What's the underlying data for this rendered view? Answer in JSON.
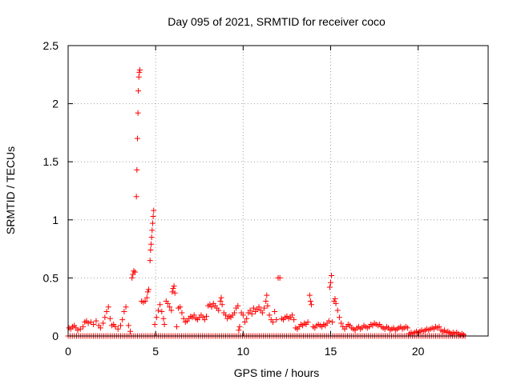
{
  "chart_data": {
    "type": "scatter",
    "title": "Day 095 of 2021, SRMTID for receiver coco",
    "xlabel": "GPS time / hours",
    "ylabel": "SRMTID / TECUs",
    "xlim": [
      0,
      24
    ],
    "ylim": [
      0,
      2.5
    ],
    "xticks": [
      0,
      5,
      10,
      15,
      20
    ],
    "yticks": [
      0,
      0.5,
      1,
      1.5,
      2,
      2.5
    ],
    "xtick_labels": [
      "0",
      "5",
      "10",
      "15",
      "20"
    ],
    "ytick_labels": [
      "0",
      "0.5",
      "1",
      "1.5",
      "2",
      "2.5"
    ],
    "grid": true,
    "marker": "+",
    "color": "#ff0000",
    "baseline": {
      "x_start": 0.0,
      "x_end": 22.7,
      "step": 0.12,
      "y": 0.0
    },
    "series": [
      {
        "name": "SRMTID",
        "points": [
          [
            0.05,
            0.07
          ],
          [
            0.15,
            0.06
          ],
          [
            0.25,
            0.08
          ],
          [
            0.35,
            0.09
          ],
          [
            0.45,
            0.07
          ],
          [
            0.55,
            0.05
          ],
          [
            0.7,
            0.06
          ],
          [
            0.85,
            0.08
          ],
          [
            0.95,
            0.12
          ],
          [
            1.05,
            0.13
          ],
          [
            1.15,
            0.11
          ],
          [
            1.3,
            0.12
          ],
          [
            1.45,
            0.1
          ],
          [
            1.6,
            0.13
          ],
          [
            1.75,
            0.09
          ],
          [
            1.85,
            0.07
          ],
          [
            2.0,
            0.11
          ],
          [
            2.1,
            0.16
          ],
          [
            2.2,
            0.21
          ],
          [
            2.3,
            0.25
          ],
          [
            2.4,
            0.15
          ],
          [
            2.5,
            0.09
          ],
          [
            2.6,
            0.1
          ],
          [
            2.7,
            0.08
          ],
          [
            2.85,
            0.06
          ],
          [
            3.0,
            0.09
          ],
          [
            3.1,
            0.14
          ],
          [
            3.2,
            0.21
          ],
          [
            3.3,
            0.25
          ],
          [
            3.45,
            0.09
          ],
          [
            3.55,
            0.04
          ],
          [
            3.65,
            0.5
          ],
          [
            3.7,
            0.53
          ],
          [
            3.75,
            0.56
          ],
          [
            3.82,
            0.55
          ],
          [
            3.9,
            1.2
          ],
          [
            3.93,
            1.43
          ],
          [
            3.96,
            1.7
          ],
          [
            3.99,
            1.92
          ],
          [
            4.01,
            2.11
          ],
          [
            4.04,
            2.23
          ],
          [
            4.07,
            2.27
          ],
          [
            4.1,
            2.29
          ],
          [
            4.2,
            0.3
          ],
          [
            4.3,
            0.29
          ],
          [
            4.4,
            0.3
          ],
          [
            4.5,
            0.33
          ],
          [
            4.55,
            0.38
          ],
          [
            4.6,
            0.4
          ],
          [
            4.68,
            0.65
          ],
          [
            4.71,
            0.74
          ],
          [
            4.74,
            0.79
          ],
          [
            4.77,
            0.85
          ],
          [
            4.8,
            0.91
          ],
          [
            4.83,
            0.97
          ],
          [
            4.86,
            1.03
          ],
          [
            4.89,
            1.08
          ],
          [
            4.95,
            0.1
          ],
          [
            5.05,
            0.16
          ],
          [
            5.15,
            0.22
          ],
          [
            5.25,
            0.27
          ],
          [
            5.35,
            0.21
          ],
          [
            5.45,
            0.15
          ],
          [
            5.5,
            0.1
          ],
          [
            5.6,
            0.3
          ],
          [
            5.7,
            0.28
          ],
          [
            5.8,
            0.25
          ],
          [
            5.9,
            0.22
          ],
          [
            5.95,
            0.38
          ],
          [
            6.0,
            0.41
          ],
          [
            6.05,
            0.43
          ],
          [
            6.1,
            0.37
          ],
          [
            6.2,
            0.08
          ],
          [
            6.3,
            0.24
          ],
          [
            6.4,
            0.25
          ],
          [
            6.5,
            0.2
          ],
          [
            6.6,
            0.15
          ],
          [
            6.7,
            0.12
          ],
          [
            6.8,
            0.13
          ],
          [
            6.9,
            0.15
          ],
          [
            7.0,
            0.17
          ],
          [
            7.1,
            0.16
          ],
          [
            7.2,
            0.18
          ],
          [
            7.3,
            0.15
          ],
          [
            7.4,
            0.14
          ],
          [
            7.5,
            0.16
          ],
          [
            7.6,
            0.18
          ],
          [
            7.7,
            0.16
          ],
          [
            7.8,
            0.14
          ],
          [
            7.9,
            0.17
          ],
          [
            8.0,
            0.26
          ],
          [
            8.1,
            0.27
          ],
          [
            8.2,
            0.25
          ],
          [
            8.3,
            0.28
          ],
          [
            8.4,
            0.26
          ],
          [
            8.5,
            0.24
          ],
          [
            8.6,
            0.22
          ],
          [
            8.7,
            0.3
          ],
          [
            8.75,
            0.33
          ],
          [
            8.8,
            0.27
          ],
          [
            8.9,
            0.2
          ],
          [
            9.0,
            0.18
          ],
          [
            9.1,
            0.15
          ],
          [
            9.2,
            0.17
          ],
          [
            9.3,
            0.16
          ],
          [
            9.4,
            0.18
          ],
          [
            9.5,
            0.2
          ],
          [
            9.6,
            0.24
          ],
          [
            9.7,
            0.26
          ],
          [
            9.75,
            0.05
          ],
          [
            9.8,
            0.08
          ],
          [
            9.9,
            0.2
          ],
          [
            10.0,
            0.18
          ],
          [
            10.1,
            0.12
          ],
          [
            10.2,
            0.15
          ],
          [
            10.3,
            0.2
          ],
          [
            10.4,
            0.22
          ],
          [
            10.5,
            0.19
          ],
          [
            10.6,
            0.24
          ],
          [
            10.7,
            0.21
          ],
          [
            10.8,
            0.23
          ],
          [
            10.9,
            0.25
          ],
          [
            11.0,
            0.22
          ],
          [
            11.1,
            0.2
          ],
          [
            11.2,
            0.24
          ],
          [
            11.3,
            0.3
          ],
          [
            11.35,
            0.35
          ],
          [
            11.4,
            0.26
          ],
          [
            11.5,
            0.18
          ],
          [
            11.6,
            0.14
          ],
          [
            11.7,
            0.12
          ],
          [
            11.8,
            0.21
          ],
          [
            11.9,
            0.14
          ],
          [
            12.0,
            0.5
          ],
          [
            12.1,
            0.5
          ],
          [
            12.2,
            0.15
          ],
          [
            12.3,
            0.14
          ],
          [
            12.4,
            0.16
          ],
          [
            12.5,
            0.17
          ],
          [
            12.6,
            0.15
          ],
          [
            12.7,
            0.16
          ],
          [
            12.8,
            0.18
          ],
          [
            12.9,
            0.14
          ],
          [
            13.0,
            0.07
          ],
          [
            13.1,
            0.06
          ],
          [
            13.2,
            0.08
          ],
          [
            13.3,
            0.1
          ],
          [
            13.4,
            0.09
          ],
          [
            13.5,
            0.11
          ],
          [
            13.6,
            0.1
          ],
          [
            13.7,
            0.12
          ],
          [
            13.8,
            0.35
          ],
          [
            13.85,
            0.3
          ],
          [
            13.9,
            0.27
          ],
          [
            14.0,
            0.08
          ],
          [
            14.1,
            0.07
          ],
          [
            14.2,
            0.09
          ],
          [
            14.3,
            0.1
          ],
          [
            14.4,
            0.09
          ],
          [
            14.5,
            0.08
          ],
          [
            14.6,
            0.1
          ],
          [
            14.7,
            0.09
          ],
          [
            14.8,
            0.11
          ],
          [
            14.9,
            0.13
          ],
          [
            14.95,
            0.42
          ],
          [
            15.0,
            0.46
          ],
          [
            15.05,
            0.52
          ],
          [
            15.1,
            0.12
          ],
          [
            15.2,
            0.3
          ],
          [
            15.25,
            0.32
          ],
          [
            15.3,
            0.28
          ],
          [
            15.4,
            0.22
          ],
          [
            15.5,
            0.16
          ],
          [
            15.6,
            0.11
          ],
          [
            15.7,
            0.08
          ],
          [
            15.8,
            0.06
          ],
          [
            15.9,
            0.08
          ],
          [
            16.0,
            0.1
          ],
          [
            16.1,
            0.09
          ],
          [
            16.2,
            0.07
          ],
          [
            16.3,
            0.06
          ],
          [
            16.4,
            0.05
          ],
          [
            16.5,
            0.07
          ],
          [
            16.6,
            0.08
          ],
          [
            16.7,
            0.06
          ],
          [
            16.8,
            0.07
          ],
          [
            16.9,
            0.09
          ],
          [
            17.0,
            0.08
          ],
          [
            17.1,
            0.07
          ],
          [
            17.2,
            0.08
          ],
          [
            17.3,
            0.1
          ],
          [
            17.4,
            0.09
          ],
          [
            17.5,
            0.11
          ],
          [
            17.6,
            0.1
          ],
          [
            17.7,
            0.09
          ],
          [
            17.8,
            0.1
          ],
          [
            17.9,
            0.08
          ],
          [
            18.0,
            0.07
          ],
          [
            18.1,
            0.06
          ],
          [
            18.2,
            0.08
          ],
          [
            18.3,
            0.07
          ],
          [
            18.4,
            0.05
          ],
          [
            18.5,
            0.06
          ],
          [
            18.6,
            0.07
          ],
          [
            18.7,
            0.05
          ],
          [
            18.8,
            0.06
          ],
          [
            18.9,
            0.07
          ],
          [
            19.0,
            0.08
          ],
          [
            19.1,
            0.06
          ],
          [
            19.2,
            0.07
          ],
          [
            19.3,
            0.08
          ],
          [
            19.4,
            0.07
          ],
          [
            19.5,
            0.02
          ],
          [
            19.6,
            0.03
          ],
          [
            19.7,
            0.02
          ],
          [
            19.8,
            0.03
          ],
          [
            19.9,
            0.04
          ],
          [
            20.0,
            0.03
          ],
          [
            20.1,
            0.04
          ],
          [
            20.2,
            0.05
          ],
          [
            20.3,
            0.04
          ],
          [
            20.4,
            0.05
          ],
          [
            20.5,
            0.06
          ],
          [
            20.6,
            0.05
          ],
          [
            20.7,
            0.06
          ],
          [
            20.8,
            0.07
          ],
          [
            20.9,
            0.06
          ],
          [
            21.0,
            0.08
          ],
          [
            21.1,
            0.07
          ],
          [
            21.2,
            0.08
          ],
          [
            21.3,
            0.05
          ],
          [
            21.4,
            0.04
          ],
          [
            21.5,
            0.05
          ],
          [
            21.6,
            0.03
          ],
          [
            21.7,
            0.04
          ],
          [
            21.8,
            0.03
          ],
          [
            21.9,
            0.02
          ],
          [
            22.0,
            0.03
          ],
          [
            22.1,
            0.02
          ],
          [
            22.2,
            0.03
          ],
          [
            22.3,
            0.02
          ],
          [
            22.4,
            0.01
          ],
          [
            22.5,
            0.02
          ],
          [
            22.6,
            0.01
          ]
        ]
      }
    ]
  }
}
